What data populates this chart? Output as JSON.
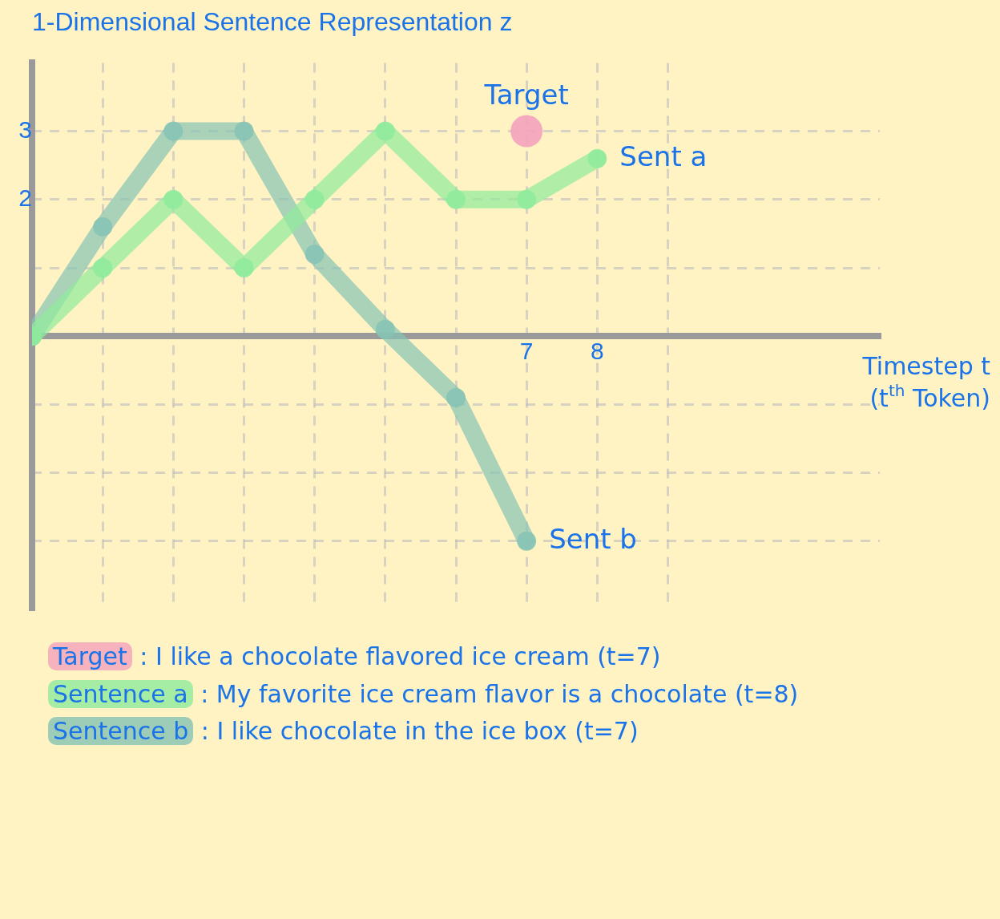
{
  "chart_data": {
    "type": "line",
    "title": "1-Dimensional Sentence Representation z",
    "xlabel": "Timestep t\n(t$^{th}$ Token)",
    "x": [
      0,
      1,
      2,
      3,
      4,
      5,
      6,
      7,
      8
    ],
    "series": [
      {
        "name": "Target",
        "type": "scatter",
        "color": "#f4a3bd",
        "x": [
          7
        ],
        "values": [
          3
        ]
      },
      {
        "name": "Sent a",
        "color": "#8eeb9c",
        "values": [
          0,
          1,
          2,
          1,
          2,
          3,
          2,
          2,
          2.6
        ]
      },
      {
        "name": "Sent b",
        "color": "#86c3b4",
        "x": [
          0,
          1,
          2,
          3,
          4,
          5,
          6,
          7
        ],
        "values": [
          0,
          1.6,
          3,
          3,
          1.2,
          0.1,
          -0.9,
          -3
        ]
      }
    ],
    "xlim": [
      0,
      12
    ],
    "xticks": [
      {
        "value": 1,
        "label": null
      },
      {
        "value": 2,
        "label": null
      },
      {
        "value": 3,
        "label": null
      },
      {
        "value": 4,
        "label": null
      },
      {
        "value": 5,
        "label": null
      },
      {
        "value": 6,
        "label": null
      },
      7,
      8,
      {
        "value": 9,
        "label": null
      }
    ],
    "ylim": [
      -4,
      4
    ],
    "yticks": [
      {
        "value": -3,
        "label": null
      },
      {
        "value": -2,
        "label": null
      },
      {
        "value": -1,
        "label": null
      },
      {
        "value": 1,
        "label": null
      },
      2,
      3
    ],
    "grid": true,
    "legend": false,
    "marker": "circle",
    "line_style": "solid",
    "annotations": [
      "Target : I like a chocolate flavored ice cream (t=7)",
      "Sentence a : My favorite ice cream flavor is a chocolate (t=8)",
      "Sentence b : I like chocolate in the ice box (t=7)"
    ]
  }
}
